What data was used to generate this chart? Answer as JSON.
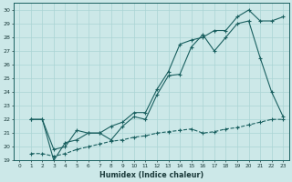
{
  "xlabel": "Humidex (Indice chaleur)",
  "bg_color": "#cce8e8",
  "grid_color": "#aad4d4",
  "line_color": "#1a6060",
  "xlim": [
    -0.5,
    23.5
  ],
  "ylim": [
    19,
    30.5
  ],
  "xticks": [
    0,
    1,
    2,
    3,
    4,
    5,
    6,
    7,
    8,
    9,
    10,
    11,
    12,
    13,
    14,
    15,
    16,
    17,
    18,
    19,
    20,
    21,
    22,
    23
  ],
  "yticks": [
    19,
    20,
    21,
    22,
    23,
    24,
    25,
    26,
    27,
    28,
    29,
    30
  ],
  "line1_x": [
    1,
    2,
    3,
    4,
    5,
    6,
    7,
    8,
    9,
    10,
    11,
    12,
    13,
    14,
    15,
    16,
    17,
    18,
    19,
    20,
    21,
    22,
    23
  ],
  "line1_y": [
    22.0,
    22.0,
    19.0,
    20.3,
    20.5,
    21.0,
    21.0,
    20.5,
    21.5,
    22.2,
    22.0,
    23.8,
    25.2,
    25.3,
    27.3,
    28.2,
    27.0,
    28.0,
    29.0,
    29.2,
    26.5,
    24.0,
    22.2
  ],
  "line2_x": [
    1,
    2,
    3,
    4,
    5,
    6,
    7,
    8,
    9,
    10,
    11,
    12,
    13,
    14,
    15,
    16,
    17,
    18,
    19,
    20,
    21,
    22,
    23
  ],
  "line2_y": [
    22.0,
    22.0,
    19.8,
    20.0,
    21.2,
    21.0,
    21.0,
    21.5,
    21.8,
    22.5,
    22.5,
    24.2,
    25.5,
    27.5,
    27.8,
    28.0,
    28.5,
    28.5,
    29.5,
    30.0,
    29.2,
    29.2,
    29.5
  ],
  "line3_x": [
    1,
    2,
    3,
    4,
    5,
    6,
    7,
    8,
    9,
    10,
    11,
    12,
    13,
    14,
    15,
    16,
    17,
    18,
    19,
    20,
    21,
    22,
    23
  ],
  "line3_y": [
    19.5,
    19.5,
    19.3,
    19.5,
    19.8,
    20.0,
    20.2,
    20.4,
    20.5,
    20.7,
    20.8,
    21.0,
    21.1,
    21.2,
    21.3,
    21.0,
    21.1,
    21.3,
    21.4,
    21.6,
    21.8,
    22.0,
    22.0
  ]
}
